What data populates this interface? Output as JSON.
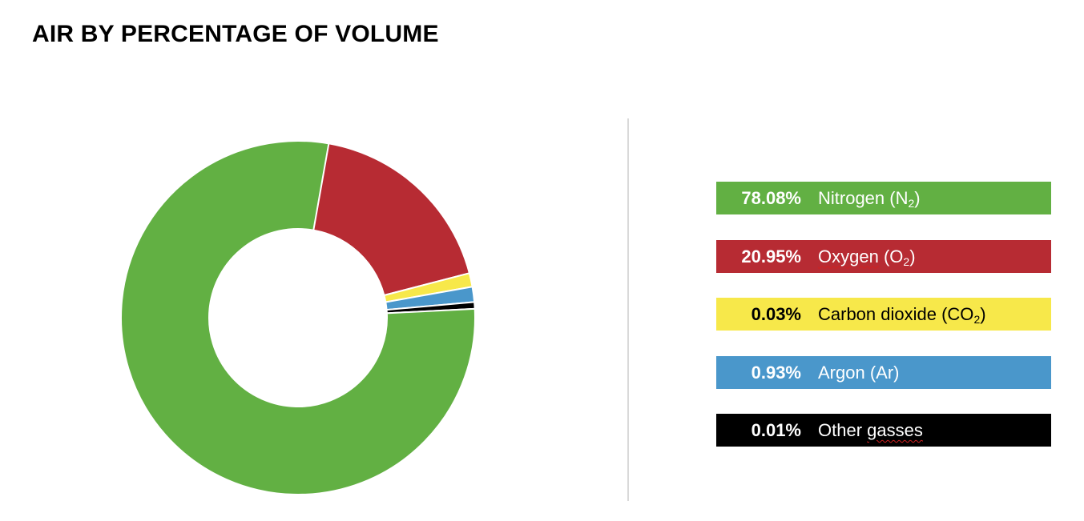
{
  "title": "AIR BY PERCENTAGE OF VOLUME",
  "chart_data": {
    "type": "pie",
    "variant": "donut",
    "title": "AIR BY PERCENTAGE OF VOLUME",
    "legend_position": "right",
    "slices": [
      {
        "value_text": "78.08%",
        "value": 78.08,
        "label_base": "Nitrogen (N",
        "label_sub": "2",
        "label_tail": ")",
        "spellcheck": "",
        "color": "#62b043",
        "text_color": "#ffffff"
      },
      {
        "value_text": "20.95%",
        "value": 20.95,
        "label_base": "",
        "label_sub": "2",
        "label_tail": ")",
        "spellcheck": "Oxygen",
        "after_spell": " (O",
        "color": "#b72b33",
        "text_color": "#ffffff"
      },
      {
        "value_text": "0.03%",
        "value": 0.03,
        "label_base": "Carbon dioxide (CO",
        "label_sub": "2",
        "label_tail": ")",
        "spellcheck": "",
        "color": "#f7e84a",
        "text_color": "#000000"
      },
      {
        "value_text": "0.93%",
        "value": 0.93,
        "label_base": "Argon (Ar)",
        "label_sub": "",
        "label_tail": "",
        "spellcheck": "",
        "color": "#4a97cb",
        "text_color": "#ffffff"
      },
      {
        "value_text": "0.01%",
        "value": 0.01,
        "label_base": "Other ",
        "label_sub": "",
        "label_tail": "",
        "spellcheck": "gasses",
        "color": "#000000",
        "text_color": "#ffffff"
      }
    ],
    "display_sweep_degrees": [
      282.9,
      75.4,
      4.5,
      5.0,
      2.2
    ]
  }
}
